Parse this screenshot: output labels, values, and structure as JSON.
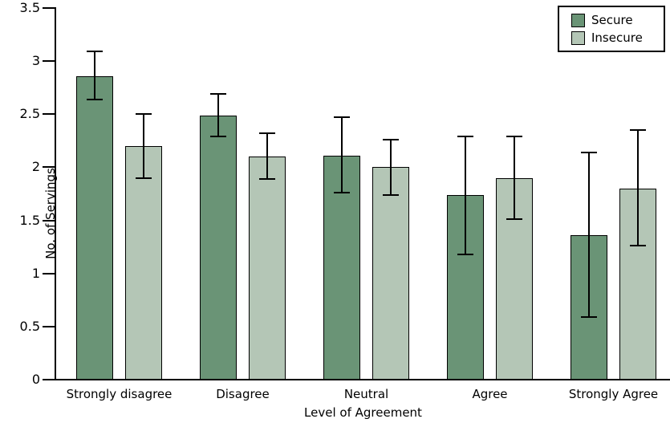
{
  "figure": {
    "background": "#ffffff",
    "text_color": "#000000"
  },
  "chart_data": {
    "type": "bar",
    "title": "",
    "xlabel": "Level of Agreement",
    "ylabel": "No. of Servings",
    "categories": [
      "Strongly disagree",
      "Disagree",
      "Neutral",
      "Agree",
      "Strongly Agree"
    ],
    "series": [
      {
        "name": "Secure",
        "color": "#6a9476",
        "values": [
          2.86,
          2.49,
          2.11,
          1.74,
          1.36
        ],
        "error_low": [
          2.64,
          2.29,
          1.76,
          1.18,
          0.59
        ],
        "error_high": [
          3.09,
          2.69,
          2.47,
          2.29,
          2.14
        ]
      },
      {
        "name": "Insecure",
        "color": "#b4c6b6",
        "values": [
          2.2,
          2.1,
          2.0,
          1.9,
          1.8
        ],
        "error_low": [
          1.9,
          1.89,
          1.74,
          1.51,
          1.26
        ],
        "error_high": [
          2.5,
          2.32,
          2.26,
          2.29,
          2.35
        ]
      }
    ],
    "ylim": [
      0,
      3.5
    ],
    "yticks": [
      0,
      0.5,
      1,
      1.5,
      2,
      2.5,
      3,
      3.5
    ],
    "ytick_labels": [
      "0",
      "0.5",
      "1",
      "1.5",
      "2",
      "2.5",
      "3",
      "3.5"
    ],
    "grid": false,
    "legend_position": "top-right",
    "bar_border_color": "#000000",
    "error_bar_color": "#000000"
  }
}
